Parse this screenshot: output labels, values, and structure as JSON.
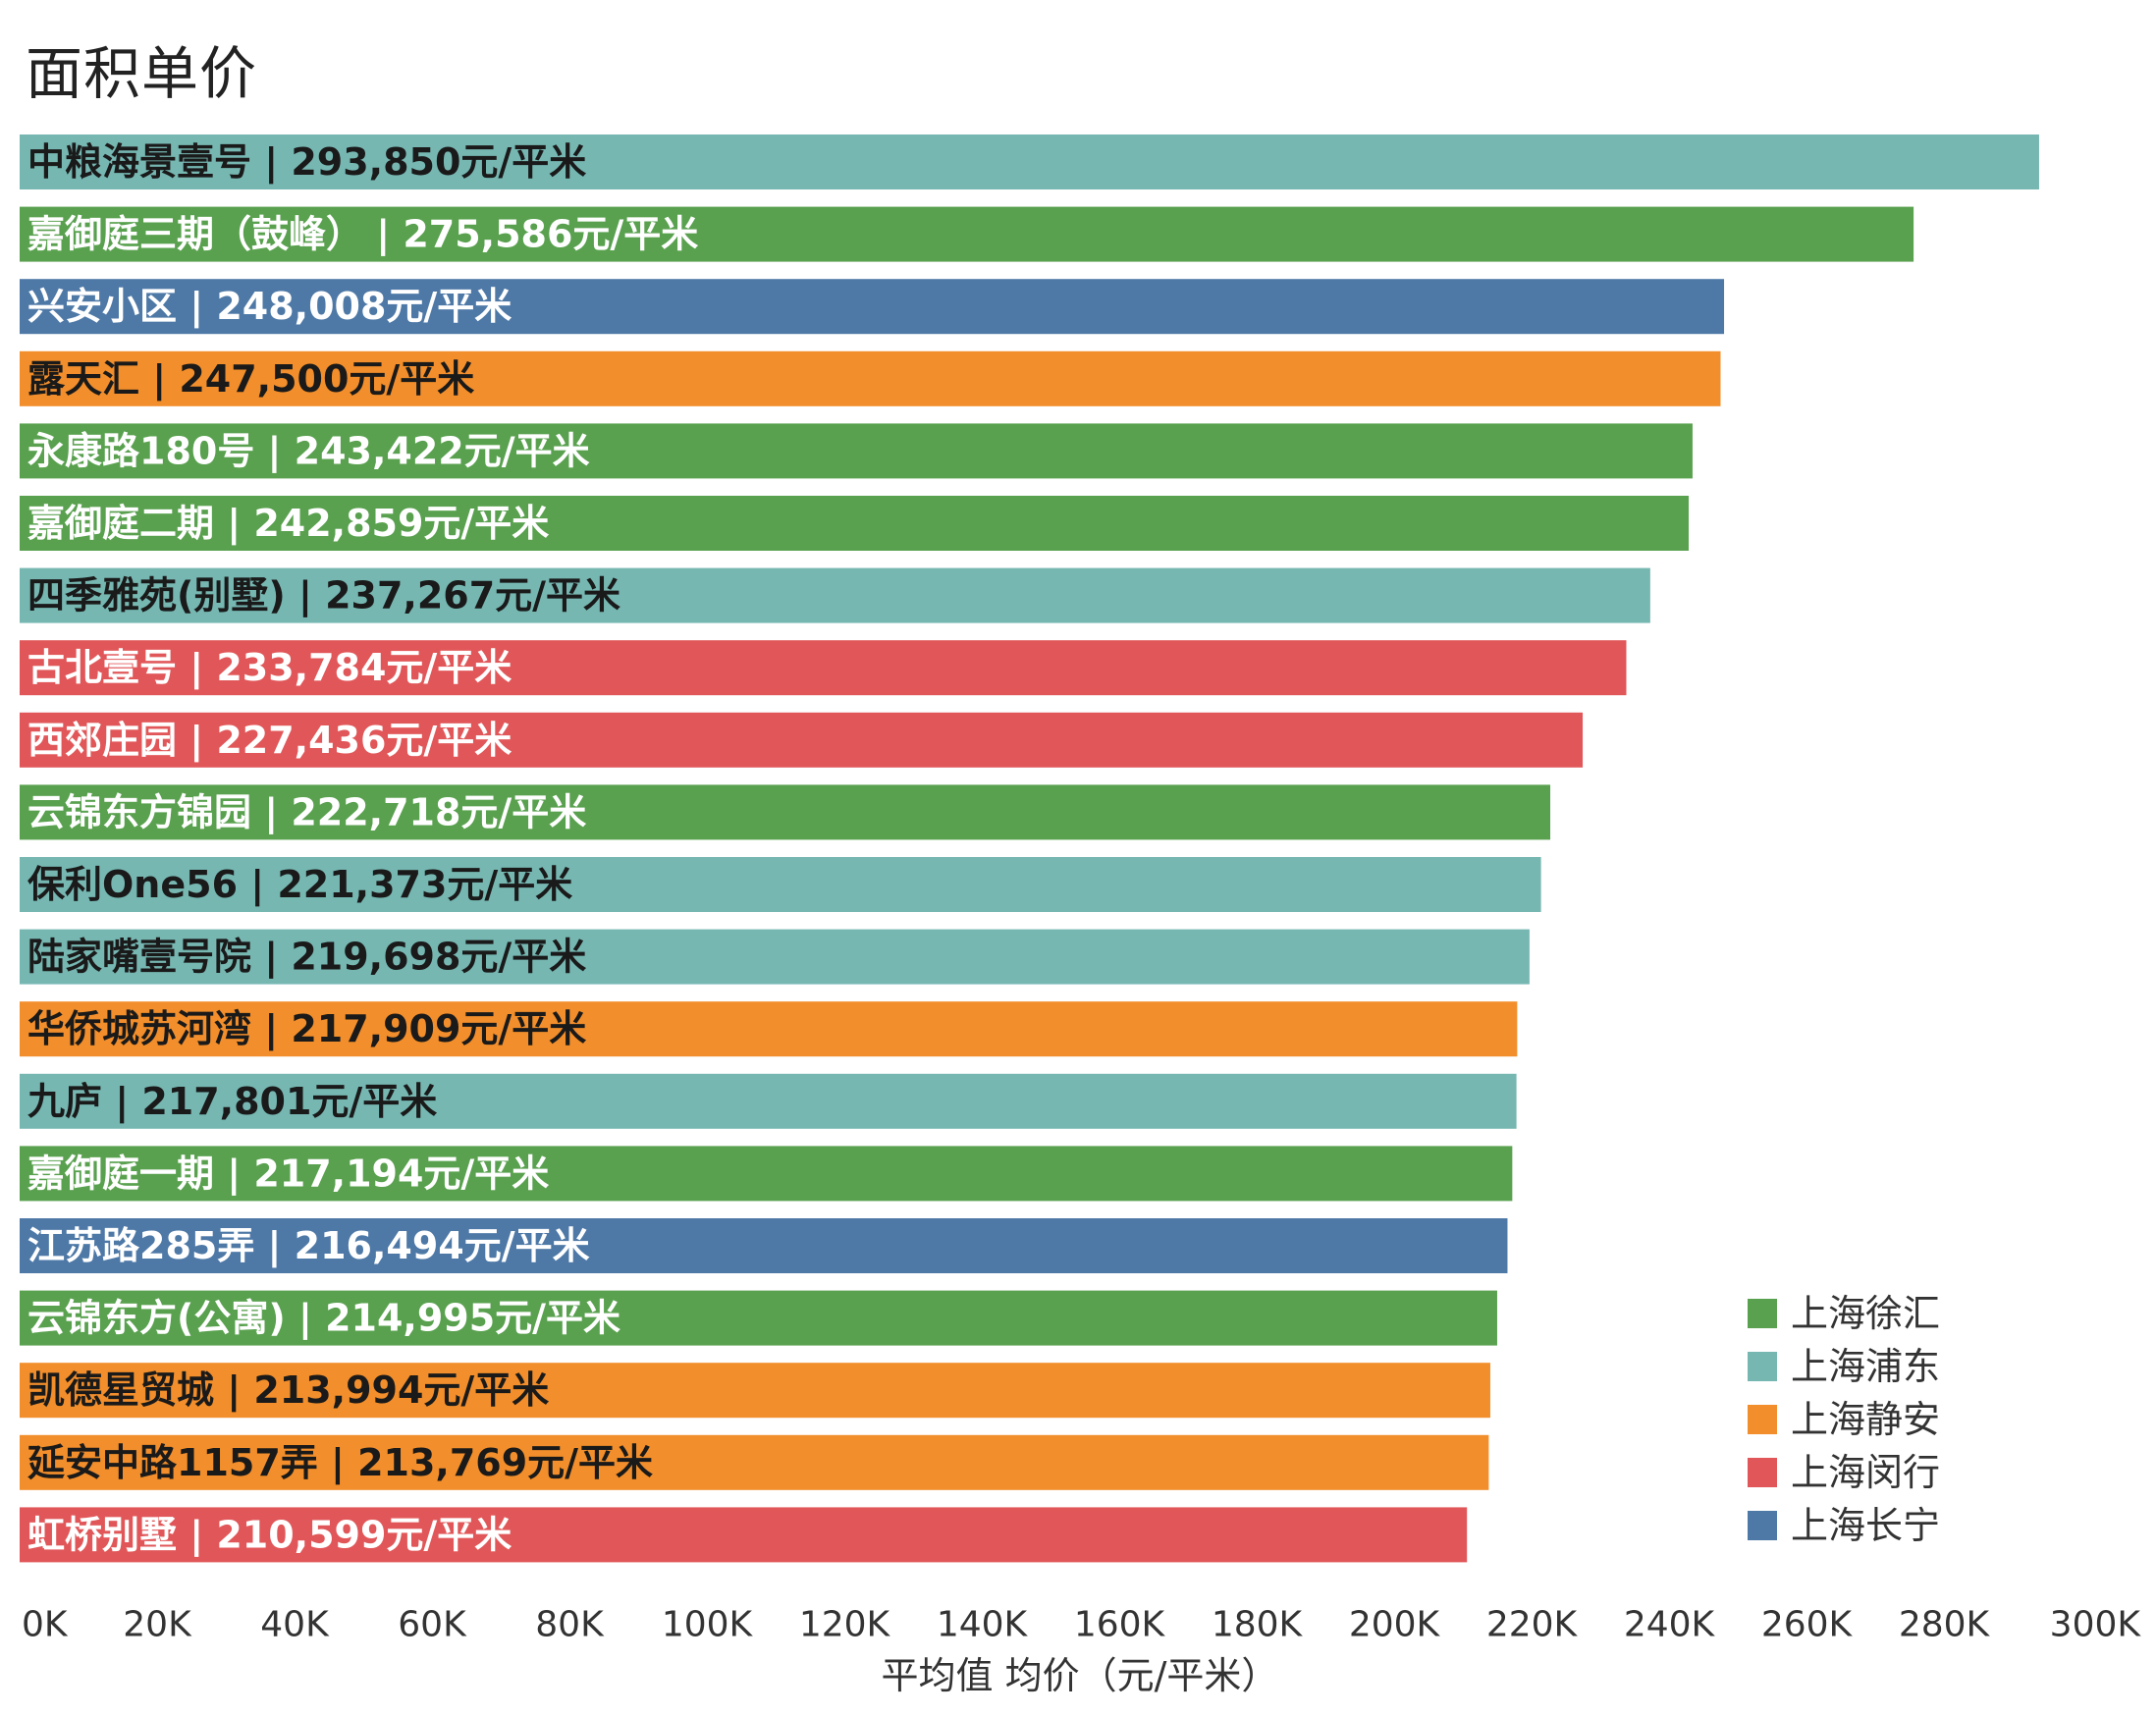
{
  "chart_data": {
    "type": "bar",
    "orientation": "horizontal",
    "title": "面积单价",
    "xlabel": "平均值 均价（元/平米）",
    "xlim": [
      0,
      300000
    ],
    "xticks": [
      0,
      20000,
      40000,
      60000,
      80000,
      100000,
      120000,
      140000,
      160000,
      180000,
      200000,
      220000,
      240000,
      260000,
      280000,
      300000
    ],
    "xtick_labels": [
      "0K",
      "20K",
      "40K",
      "60K",
      "80K",
      "100K",
      "120K",
      "140K",
      "160K",
      "180K",
      "200K",
      "220K",
      "240K",
      "260K",
      "280K",
      "300K"
    ],
    "legend_position": "bottom-right",
    "series_colors": {
      "上海徐汇": "#59a14f",
      "上海浦东": "#76b7b2",
      "上海静安": "#f28e2b",
      "上海闵行": "#e15759",
      "上海长宁": "#4e79a7"
    },
    "legend": [
      "上海徐汇",
      "上海浦东",
      "上海静安",
      "上海闵行",
      "上海长宁"
    ],
    "bars": [
      {
        "category": "中粮海景壹号",
        "value": 293850,
        "series": "上海浦东",
        "label": "中粮海景壹号 | 293,850元/平米",
        "label_color": "#1a1a1a"
      },
      {
        "category": "嘉御庭三期（鼓峰）",
        "value": 275586,
        "series": "上海徐汇",
        "label": "嘉御庭三期（鼓峰） | 275,586元/平米",
        "label_color": "#ffffff"
      },
      {
        "category": "兴安小区",
        "value": 248008,
        "series": "上海长宁",
        "label": "兴安小区 | 248,008元/平米",
        "label_color": "#ffffff"
      },
      {
        "category": "露天汇",
        "value": 247500,
        "series": "上海静安",
        "label": "露天汇 | 247,500元/平米",
        "label_color": "#1a1a1a"
      },
      {
        "category": "永康路180号",
        "value": 243422,
        "series": "上海徐汇",
        "label": "永康路180号 | 243,422元/平米",
        "label_color": "#ffffff"
      },
      {
        "category": "嘉御庭二期",
        "value": 242859,
        "series": "上海徐汇",
        "label": "嘉御庭二期 | 242,859元/平米",
        "label_color": "#ffffff"
      },
      {
        "category": "四季雅苑(别墅)",
        "value": 237267,
        "series": "上海浦东",
        "label": "四季雅苑(别墅) | 237,267元/平米",
        "label_color": "#1a1a1a"
      },
      {
        "category": "古北壹号",
        "value": 233784,
        "series": "上海闵行",
        "label": "古北壹号 | 233,784元/平米",
        "label_color": "#ffffff"
      },
      {
        "category": "西郊庄园",
        "value": 227436,
        "series": "上海闵行",
        "label": "西郊庄园 | 227,436元/平米",
        "label_color": "#ffffff"
      },
      {
        "category": "云锦东方锦园",
        "value": 222718,
        "series": "上海徐汇",
        "label": "云锦东方锦园 | 222,718元/平米",
        "label_color": "#ffffff"
      },
      {
        "category": "保利One56",
        "value": 221373,
        "series": "上海浦东",
        "label": "保利One56 | 221,373元/平米",
        "label_color": "#1a1a1a"
      },
      {
        "category": "陆家嘴壹号院",
        "value": 219698,
        "series": "上海浦东",
        "label": "陆家嘴壹号院 | 219,698元/平米",
        "label_color": "#1a1a1a"
      },
      {
        "category": "华侨城苏河湾",
        "value": 217909,
        "series": "上海静安",
        "label": "华侨城苏河湾 | 217,909元/平米",
        "label_color": "#1a1a1a"
      },
      {
        "category": "九庐",
        "value": 217801,
        "series": "上海浦东",
        "label": "九庐 | 217,801元/平米",
        "label_color": "#1a1a1a"
      },
      {
        "category": "嘉御庭一期",
        "value": 217194,
        "series": "上海徐汇",
        "label": "嘉御庭一期 | 217,194元/平米",
        "label_color": "#ffffff"
      },
      {
        "category": "江苏路285弄",
        "value": 216494,
        "series": "上海长宁",
        "label": "江苏路285弄 | 216,494元/平米",
        "label_color": "#ffffff"
      },
      {
        "category": "云锦东方(公寓)",
        "value": 214995,
        "series": "上海徐汇",
        "label": "云锦东方(公寓) | 214,995元/平米",
        "label_color": "#ffffff"
      },
      {
        "category": "凯德星贸城",
        "value": 213994,
        "series": "上海静安",
        "label": "凯德星贸城 | 213,994元/平米",
        "label_color": "#1a1a1a"
      },
      {
        "category": "延安中路1157弄",
        "value": 213769,
        "series": "上海静安",
        "label": "延安中路1157弄 | 213,769元/平米",
        "label_color": "#1a1a1a"
      },
      {
        "category": "虹桥别墅",
        "value": 210599,
        "series": "上海闵行",
        "label": "虹桥别墅 | 210,599元/平米",
        "label_color": "#ffffff"
      }
    ]
  }
}
